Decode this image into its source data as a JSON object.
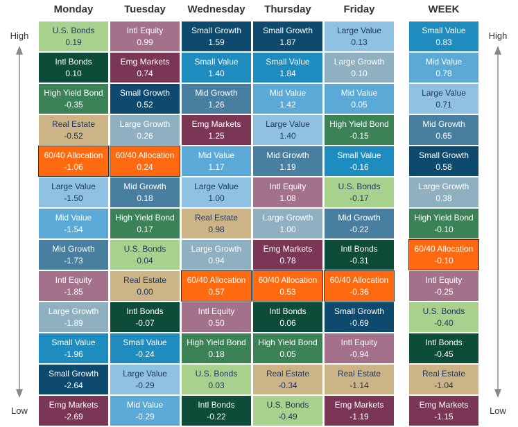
{
  "axis_labels": {
    "high": "High",
    "low": "Low"
  },
  "columns": [
    {
      "title": "Monday",
      "cells": [
        [
          "U.S. Bonds",
          "0.19",
          "#a9d18e"
        ],
        [
          "Intl Bonds",
          "0.10",
          "#0e4c3a"
        ],
        [
          "High Yield Bond",
          "-0.35",
          "#3b8256"
        ],
        [
          "Real Estate",
          "-0.52",
          "#cdb487"
        ],
        [
          "60/40 Allocation",
          "-1.06",
          "#ff6a10"
        ],
        [
          "Large Value",
          "-1.50",
          "#8fc1e3"
        ],
        [
          "Mid Value",
          "-1.54",
          "#5aa9d6"
        ],
        [
          "Mid Growth",
          "-1.73",
          "#487ea0"
        ],
        [
          "Intl Equity",
          "-1.85",
          "#a3718a"
        ],
        [
          "Large Growth",
          "-1.89",
          "#8fb0c1"
        ],
        [
          "Small Value",
          "-1.96",
          "#1f8cc0"
        ],
        [
          "Small Growth",
          "-2.64",
          "#0d4a6e"
        ],
        [
          "Emg Markets",
          "-2.69",
          "#7b3655"
        ]
      ]
    },
    {
      "title": "Tuesday",
      "cells": [
        [
          "Intl Equity",
          "0.99",
          "#a3718a"
        ],
        [
          "Emg Markets",
          "0.74",
          "#7b3655"
        ],
        [
          "Small Growth",
          "0.52",
          "#0d4a6e"
        ],
        [
          "Large Growth",
          "0.26",
          "#8fb0c1"
        ],
        [
          "60/40 Allocation",
          "0.24",
          "#ff6a10"
        ],
        [
          "Mid Growth",
          "0.18",
          "#487ea0"
        ],
        [
          "High Yield Bond",
          "0.17",
          "#3b8256"
        ],
        [
          "U.S. Bonds",
          "0.04",
          "#a9d18e"
        ],
        [
          "Real Estate",
          "0.00",
          "#cdb487"
        ],
        [
          "Intl Bonds",
          "-0.07",
          "#0e4c3a"
        ],
        [
          "Small Value",
          "-0.24",
          "#1f8cc0"
        ],
        [
          "Large Value",
          "-0.29",
          "#8fc1e3"
        ],
        [
          "Mid Value",
          "-0.29",
          "#5aa9d6"
        ]
      ]
    },
    {
      "title": "Wednesday",
      "cells": [
        [
          "Small Growth",
          "1.59",
          "#0d4a6e"
        ],
        [
          "Small Value",
          "1.40",
          "#1f8cc0"
        ],
        [
          "Mid Growth",
          "1.26",
          "#487ea0"
        ],
        [
          "Emg Markets",
          "1.25",
          "#7b3655"
        ],
        [
          "Mid Value",
          "1.17",
          "#5aa9d6"
        ],
        [
          "Large Value",
          "1.00",
          "#8fc1e3"
        ],
        [
          "Real Estate",
          "0.98",
          "#cdb487"
        ],
        [
          "Large Growth",
          "0.94",
          "#8fb0c1"
        ],
        [
          "60/40 Allocation",
          "0.57",
          "#ff6a10"
        ],
        [
          "Intl Equity",
          "0.50",
          "#a3718a"
        ],
        [
          "High Yield Bond",
          "0.18",
          "#3b8256"
        ],
        [
          "U.S. Bonds",
          "0.03",
          "#a9d18e"
        ],
        [
          "Intl Bonds",
          "-0.22",
          "#0e4c3a"
        ]
      ]
    },
    {
      "title": "Thursday",
      "cells": [
        [
          "Small Growth",
          "1.87",
          "#0d4a6e"
        ],
        [
          "Small Value",
          "1.84",
          "#1f8cc0"
        ],
        [
          "Mid Value",
          "1.42",
          "#5aa9d6"
        ],
        [
          "Large Value",
          "1.40",
          "#8fc1e3"
        ],
        [
          "Mid Growth",
          "1.19",
          "#487ea0"
        ],
        [
          "Intl Equity",
          "1.08",
          "#a3718a"
        ],
        [
          "Large Growth",
          "1.00",
          "#8fb0c1"
        ],
        [
          "Emg Markets",
          "0.78",
          "#7b3655"
        ],
        [
          "60/40 Allocation",
          "0.53",
          "#ff6a10"
        ],
        [
          "Intl Bonds",
          "0.06",
          "#0e4c3a"
        ],
        [
          "High Yield Bond",
          "0.05",
          "#3b8256"
        ],
        [
          "Real Estate",
          "-0.34",
          "#cdb487"
        ],
        [
          "U.S. Bonds",
          "-0.49",
          "#a9d18e"
        ]
      ]
    },
    {
      "title": "Friday",
      "cells": [
        [
          "Large Value",
          "0.13",
          "#8fc1e3"
        ],
        [
          "Large Growth",
          "0.10",
          "#8fb0c1"
        ],
        [
          "Mid Value",
          "0.05",
          "#5aa9d6"
        ],
        [
          "High Yield Bond",
          "-0.15",
          "#3b8256"
        ],
        [
          "Small Value",
          "-0.16",
          "#1f8cc0"
        ],
        [
          "U.S. Bonds",
          "-0.17",
          "#a9d18e"
        ],
        [
          "Mid Growth",
          "-0.22",
          "#487ea0"
        ],
        [
          "Intl Bonds",
          "-0.31",
          "#0e4c3a"
        ],
        [
          "60/40 Allocation",
          "-0.36",
          "#ff6a10"
        ],
        [
          "Small Growth",
          "-0.69",
          "#0d4a6e"
        ],
        [
          "Intl Equity",
          "-0.94",
          "#a3718a"
        ],
        [
          "Real Estate",
          "-1.14",
          "#cdb487"
        ],
        [
          "Emg Markets",
          "-1.19",
          "#7b3655"
        ]
      ]
    },
    {
      "title": "WEEK",
      "cells": [
        [
          "Small Value",
          "0.83",
          "#1f8cc0"
        ],
        [
          "Mid Value",
          "0.78",
          "#5aa9d6"
        ],
        [
          "Large Value",
          "0.71",
          "#8fc1e3"
        ],
        [
          "Mid Growth",
          "0.65",
          "#487ea0"
        ],
        [
          "Small Growth",
          "0.58",
          "#0d4a6e"
        ],
        [
          "Large Growth",
          "0.38",
          "#8fb0c1"
        ],
        [
          "High Yield Bond",
          "-0.10",
          "#3b8256"
        ],
        [
          "60/40 Allocation",
          "-0.10",
          "#ff6a10"
        ],
        [
          "Intl Equity",
          "-0.25",
          "#a3718a"
        ],
        [
          "U.S. Bonds",
          "-0.40",
          "#a9d18e"
        ],
        [
          "Intl Bonds",
          "-0.45",
          "#0e4c3a"
        ],
        [
          "Real Estate",
          "-1.04",
          "#cdb487"
        ],
        [
          "Emg Markets",
          "-1.15",
          "#7b3655"
        ]
      ]
    }
  ]
}
